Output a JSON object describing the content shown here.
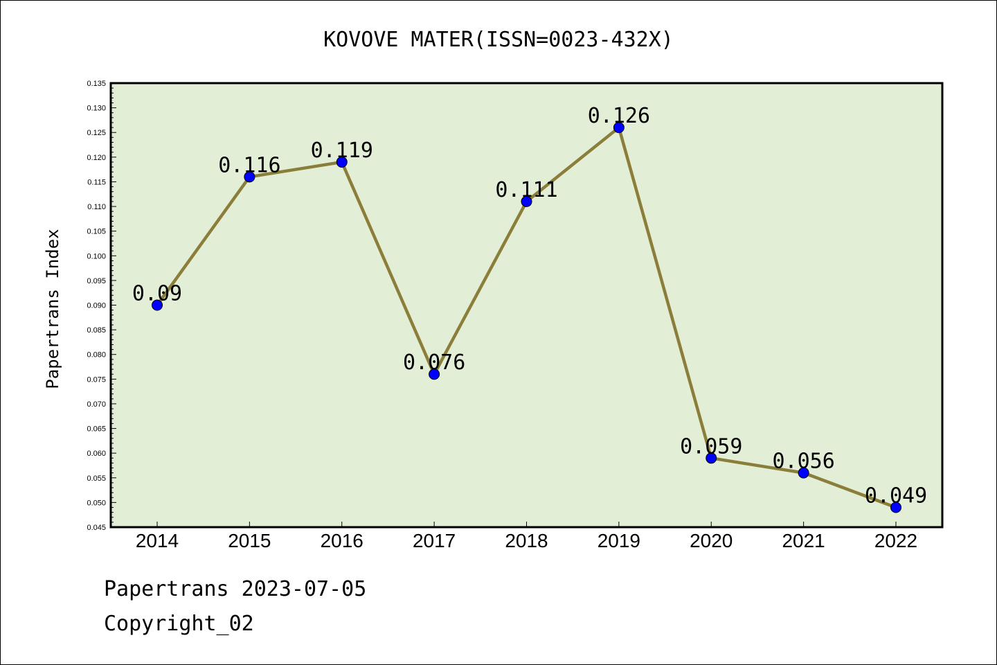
{
  "chart_data": {
    "type": "line",
    "title": "KOVOVE MATER(ISSN=0023-432X)",
    "xlabel": "",
    "ylabel": "Papertrans Index",
    "categories": [
      "2014",
      "2015",
      "2016",
      "2017",
      "2018",
      "2019",
      "2020",
      "2021",
      "2022"
    ],
    "values": [
      0.09,
      0.116,
      0.119,
      0.076,
      0.111,
      0.126,
      0.059,
      0.056,
      0.049
    ],
    "data_labels": [
      "0.09",
      "0.116",
      "0.119",
      "0.076",
      "0.111",
      "0.126",
      "0.059",
      "0.056",
      "0.049"
    ],
    "ylim": [
      0.045,
      0.135
    ],
    "yticks": [
      "0.045",
      "0.050",
      "0.055",
      "0.060",
      "0.065",
      "0.070",
      "0.075",
      "0.080",
      "0.085",
      "0.090",
      "0.095",
      "0.100",
      "0.105",
      "0.110",
      "0.115",
      "0.120",
      "0.125",
      "0.130",
      "0.135"
    ],
    "grid": false,
    "colors": {
      "line": "#8b7d3a",
      "marker": "#0000ff",
      "plot_bg": "#e2efd6"
    }
  },
  "footer": {
    "line1": "Papertrans 2023-07-05",
    "line2": "Copyright_02"
  }
}
